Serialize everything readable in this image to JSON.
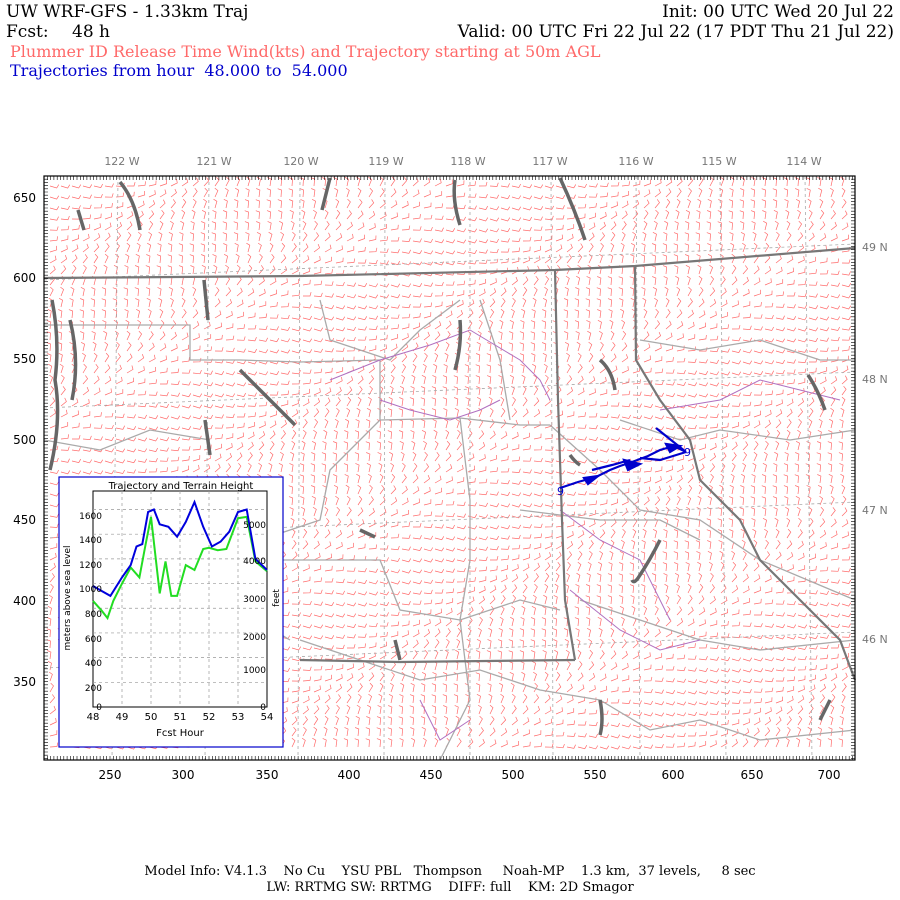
{
  "header": {
    "model_title": "UW WRF-GFS - 1.33km Traj",
    "init": "Init: 00 UTC Wed 20 Jul 22",
    "fcst_label": "Fcst:",
    "fcst_value": "48 h",
    "valid": "Valid: 00 UTC Fri 22 Jul 22 (17 PDT Thu 21 Jul 22)",
    "subtitle": "Plummer ID Release Time Wind(kts) and Trajectory starting at 50m AGL",
    "traj_range": "Trajectories from hour  48.000 to  54.000"
  },
  "map": {
    "lon_labels": [
      "122 W",
      "121 W",
      "120 W",
      "119 W",
      "118 W",
      "117 W",
      "116 W",
      "115 W",
      "114 W"
    ],
    "lat_labels": [
      "49 N",
      "48 N",
      "47 N",
      "46 N"
    ],
    "x_ticks": [
      "250",
      "300",
      "350",
      "400",
      "450",
      "500",
      "550",
      "600",
      "650",
      "700"
    ],
    "y_ticks": [
      "650",
      "600",
      "550",
      "500",
      "450",
      "400",
      "350"
    ],
    "x_range": [
      212,
      712
    ],
    "y_range": [
      307,
      663
    ],
    "trajectory_marker": "9",
    "colors": {
      "wind_barbs": "#ff6a6a",
      "state_lines": "#777777",
      "county_lines": "#aaaaaa",
      "coast_water": "#666666",
      "terrain_purple": "#b070c0",
      "trajectory": "#0000cc"
    }
  },
  "inset": {
    "title": "Trajectory and Terrain Height",
    "ylabel_left": "meters above sea level",
    "ylabel_right": "feet",
    "xlabel": "Fcst Hour",
    "x_ticks": [
      "48",
      "49",
      "50",
      "51",
      "52",
      "53",
      "54"
    ],
    "y_ticks_left": [
      "1600",
      "1400",
      "1200",
      "1000",
      "800",
      "600",
      "400",
      "200",
      "0"
    ],
    "y_ticks_right": [
      "5000",
      "4000",
      "3000",
      "2000",
      "1000",
      "0"
    ]
  },
  "chart_data": {
    "type": "line",
    "title": "Trajectory and Terrain Height",
    "xlabel": "Fcst Hour",
    "ylabel": "meters above sea level",
    "xlim": [
      48,
      54
    ],
    "ylim": [
      0,
      1750
    ],
    "grid": true,
    "series": [
      {
        "color": "#0000dd",
        "x": [
          48,
          48.3,
          48.6,
          49,
          49.3,
          49.5,
          49.7,
          49.9,
          50.1,
          50.3,
          50.6,
          50.9,
          51.2,
          51.5,
          51.8,
          52.1,
          52.4,
          52.7,
          53,
          53.3,
          53.6,
          54
        ],
        "values": [
          980,
          940,
          900,
          1050,
          1150,
          1300,
          1320,
          1580,
          1600,
          1480,
          1460,
          1380,
          1500,
          1660,
          1460,
          1300,
          1340,
          1420,
          1580,
          1600,
          1200,
          1110
        ]
      },
      {
        "color": "#22dd22",
        "x": [
          48,
          48.3,
          48.5,
          48.7,
          49,
          49.3,
          49.6,
          49.8,
          50,
          50.3,
          50.5,
          50.7,
          50.9,
          51.2,
          51.5,
          51.8,
          52,
          52.3,
          52.6,
          53,
          53.3,
          53.6,
          54
        ],
        "values": [
          860,
          780,
          720,
          860,
          1000,
          1130,
          1050,
          1300,
          1540,
          920,
          1180,
          900,
          900,
          1150,
          1110,
          1280,
          1290,
          1270,
          1280,
          1530,
          1540,
          1180,
          1100
        ]
      }
    ]
  },
  "footer": {
    "line1": "Model Info: V4.1.3    No Cu    YSU PBL   Thompson     Noah-MP    1.3 km,  37 levels,     8 sec",
    "line2": "LW: RRTMG SW: RRTMG    DIFF: full    KM: 2D Smagor"
  }
}
